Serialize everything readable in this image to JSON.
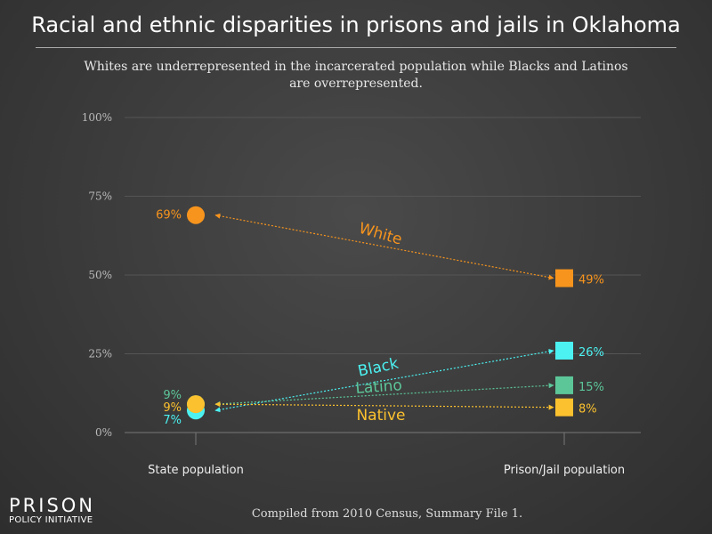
{
  "title": "Racial and ethnic disparities in prisons and jails in Oklahoma",
  "subtitle": "Whites are underrepresented in the incarcerated population while Blacks and Latinos are overrepresented.",
  "source": "Compiled from 2010 Census, Summary File 1.",
  "logo": {
    "line1": "PRISON",
    "line2": "POLICY INITIATIVE"
  },
  "chart_data": {
    "type": "slope",
    "categories": [
      "State population",
      "Prison/Jail population"
    ],
    "ylim": [
      0,
      100
    ],
    "yticks": [
      "0%",
      "25%",
      "50%",
      "75%",
      "100%"
    ],
    "ytick_values": [
      0,
      25,
      50,
      75,
      100
    ],
    "grid": true,
    "series": [
      {
        "name": "White",
        "values": [
          69,
          49
        ],
        "labels": [
          "69%",
          "49%"
        ],
        "color": "#f7941d"
      },
      {
        "name": "Black",
        "values": [
          7,
          26
        ],
        "labels": [
          "7%",
          "26%"
        ],
        "color": "#4cf2f2"
      },
      {
        "name": "Latino",
        "values": [
          9,
          15
        ],
        "labels": [
          "9%",
          "15%"
        ],
        "color": "#5cc699"
      },
      {
        "name": "Native",
        "values": [
          9,
          8
        ],
        "labels": [
          "9%",
          "8%"
        ],
        "color": "#fcc12e"
      }
    ]
  }
}
